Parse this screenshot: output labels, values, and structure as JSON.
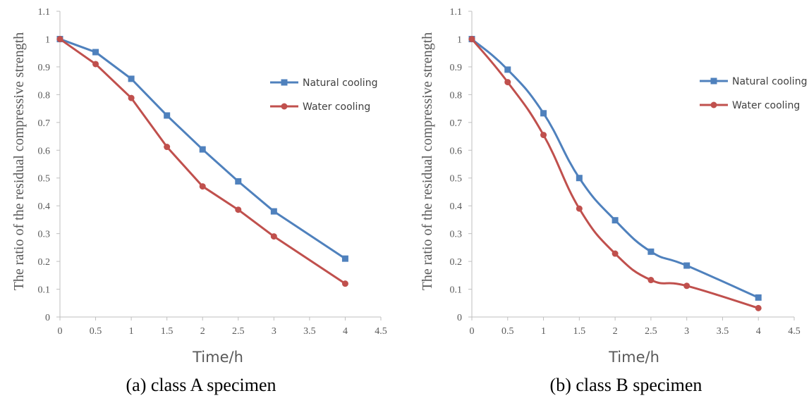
{
  "chart_data": [
    {
      "type": "line",
      "caption": "(a) class A specimen",
      "xlabel": "Time/h",
      "ylabel": "The ratio of the residual compressive strength",
      "xlim": [
        0,
        4.5
      ],
      "ylim": [
        0,
        1.1
      ],
      "x_ticks": [
        "0",
        "0.5",
        "1",
        "1.5",
        "2",
        "2.5",
        "3",
        "3.5",
        "4",
        "4.5"
      ],
      "y_ticks": [
        "0",
        "0.1",
        "0.2",
        "0.3",
        "0.4",
        "0.5",
        "0.6",
        "0.7",
        "0.8",
        "0.9",
        "1",
        "1.1"
      ],
      "x": [
        0,
        0.5,
        1,
        1.5,
        2,
        2.5,
        3,
        4
      ],
      "legend_position": "right",
      "series": [
        {
          "name": "Natural cooling",
          "marker": "square",
          "color": "#4F81BD",
          "values": [
            1.0,
            0.953,
            0.857,
            0.725,
            0.603,
            0.488,
            0.38,
            0.21
          ]
        },
        {
          "name": "Water cooling",
          "marker": "circle",
          "color": "#C0504D",
          "values": [
            1.0,
            0.91,
            0.788,
            0.612,
            0.47,
            0.386,
            0.29,
            0.12
          ]
        }
      ]
    },
    {
      "type": "line",
      "caption": "(b) class B specimen",
      "xlabel": "Time/h",
      "ylabel": "The ratio of the residual compressive strength",
      "xlim": [
        0,
        4.5
      ],
      "ylim": [
        0,
        1.1
      ],
      "x_ticks": [
        "0",
        "0.5",
        "1",
        "1.5",
        "2",
        "2.5",
        "3",
        "3.5",
        "4",
        "4.5"
      ],
      "y_ticks": [
        "0",
        "0.1",
        "0.2",
        "0.3",
        "0.4",
        "0.5",
        "0.6",
        "0.7",
        "0.8",
        "0.9",
        "1",
        "1.1"
      ],
      "x": [
        0,
        0.5,
        1,
        1.5,
        2,
        2.5,
        3,
        4
      ],
      "smooth": true,
      "legend_position": "right",
      "series": [
        {
          "name": "Natural cooling",
          "marker": "square",
          "color": "#4F81BD",
          "values": [
            1.0,
            0.89,
            0.733,
            0.5,
            0.348,
            0.235,
            0.185,
            0.07
          ]
        },
        {
          "name": "Water cooling",
          "marker": "circle",
          "color": "#C0504D",
          "values": [
            1.0,
            0.845,
            0.655,
            0.39,
            0.228,
            0.133,
            0.112,
            0.032
          ]
        }
      ]
    }
  ]
}
